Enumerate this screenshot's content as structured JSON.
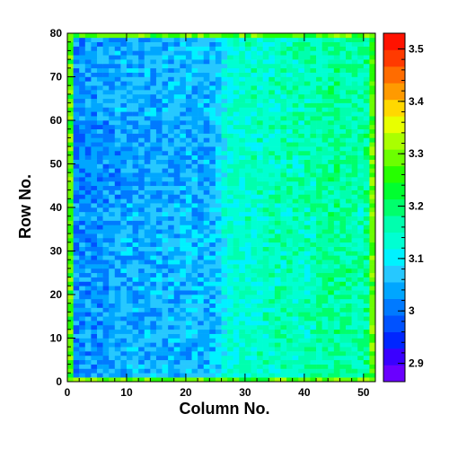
{
  "chart_data": {
    "type": "heatmap",
    "title": "",
    "xlabel": "Column No.",
    "ylabel": "Row No.",
    "x_range": [
      0,
      52
    ],
    "y_range": [
      0,
      80
    ],
    "x_bins": 52,
    "y_bins": 80,
    "x_ticks": [
      "0",
      "10",
      "20",
      "30",
      "40",
      "50"
    ],
    "y_ticks": [
      "0",
      "10",
      "20",
      "30",
      "40",
      "50",
      "60",
      "70",
      "80"
    ],
    "z_range": [
      2.865,
      3.53
    ],
    "z_ticks": [
      "2.9",
      "3",
      "3.1",
      "3.2",
      "3.3",
      "3.4",
      "3.5"
    ],
    "palette": [
      "#6a00ff",
      "#3a00ff",
      "#0026ff",
      "#0052ff",
      "#007aff",
      "#00a6ff",
      "#26c8ff",
      "#00f2ff",
      "#00ffd2",
      "#00ffae",
      "#00ff6c",
      "#00ff30",
      "#26ff00",
      "#6cff00",
      "#aaff00",
      "#e8ff00",
      "#ffd800",
      "#ff9a00",
      "#ff6c00",
      "#ff3a00",
      "#ff1200"
    ],
    "column_profile": {
      "columns": [
        0,
        5,
        10,
        15,
        20,
        25,
        27,
        30,
        35,
        40,
        45,
        50,
        51
      ],
      "mean_values": [
        3.02,
        3.03,
        3.05,
        3.05,
        3.06,
        3.06,
        3.13,
        3.14,
        3.15,
        3.15,
        3.18,
        3.16,
        3.2
      ]
    },
    "edge_values": {
      "border": 3.26,
      "border_alt": 3.3
    }
  }
}
